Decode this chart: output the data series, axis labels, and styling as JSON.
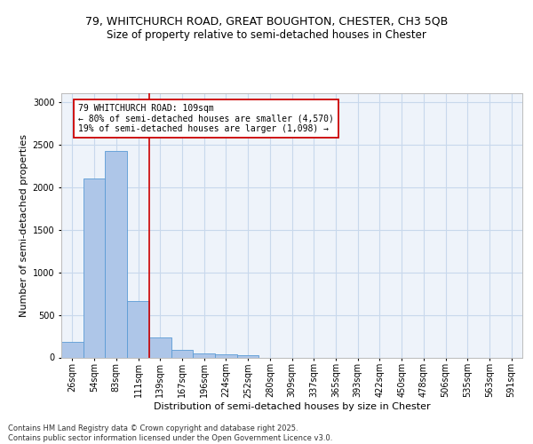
{
  "title_line1": "79, WHITCHURCH ROAD, GREAT BOUGHTON, CHESTER, CH3 5QB",
  "title_line2": "Size of property relative to semi-detached houses in Chester",
  "xlabel": "Distribution of semi-detached houses by size in Chester",
  "ylabel": "Number of semi-detached properties",
  "bin_labels": [
    "26sqm",
    "54sqm",
    "83sqm",
    "111sqm",
    "139sqm",
    "167sqm",
    "196sqm",
    "224sqm",
    "252sqm",
    "280sqm",
    "309sqm",
    "337sqm",
    "365sqm",
    "393sqm",
    "422sqm",
    "450sqm",
    "478sqm",
    "506sqm",
    "535sqm",
    "563sqm",
    "591sqm"
  ],
  "bar_heights": [
    185,
    2100,
    2420,
    660,
    230,
    90,
    50,
    40,
    25,
    0,
    0,
    0,
    0,
    0,
    0,
    0,
    0,
    0,
    0,
    0,
    0
  ],
  "bar_color": "#AEC6E8",
  "bar_edge_color": "#5B9BD5",
  "vline_color": "#cc0000",
  "vline_x": 3.5,
  "annotation_text": "79 WHITCHURCH ROAD: 109sqm\n← 80% of semi-detached houses are smaller (4,570)\n19% of semi-detached houses are larger (1,098) →",
  "annotation_box_color": "#ffffff",
  "annotation_box_edge": "#cc0000",
  "footer_text": "Contains HM Land Registry data © Crown copyright and database right 2025.\nContains public sector information licensed under the Open Government Licence v3.0.",
  "ylim": [
    0,
    3100
  ],
  "yticks": [
    0,
    500,
    1000,
    1500,
    2000,
    2500,
    3000
  ],
  "grid_color": "#c8d8ec",
  "background_color": "#EEF3FA",
  "fig_background": "#ffffff",
  "title1_fontsize": 9,
  "title2_fontsize": 8.5,
  "ylabel_fontsize": 8,
  "xlabel_fontsize": 8,
  "tick_fontsize": 7,
  "annot_fontsize": 7,
  "footer_fontsize": 6
}
